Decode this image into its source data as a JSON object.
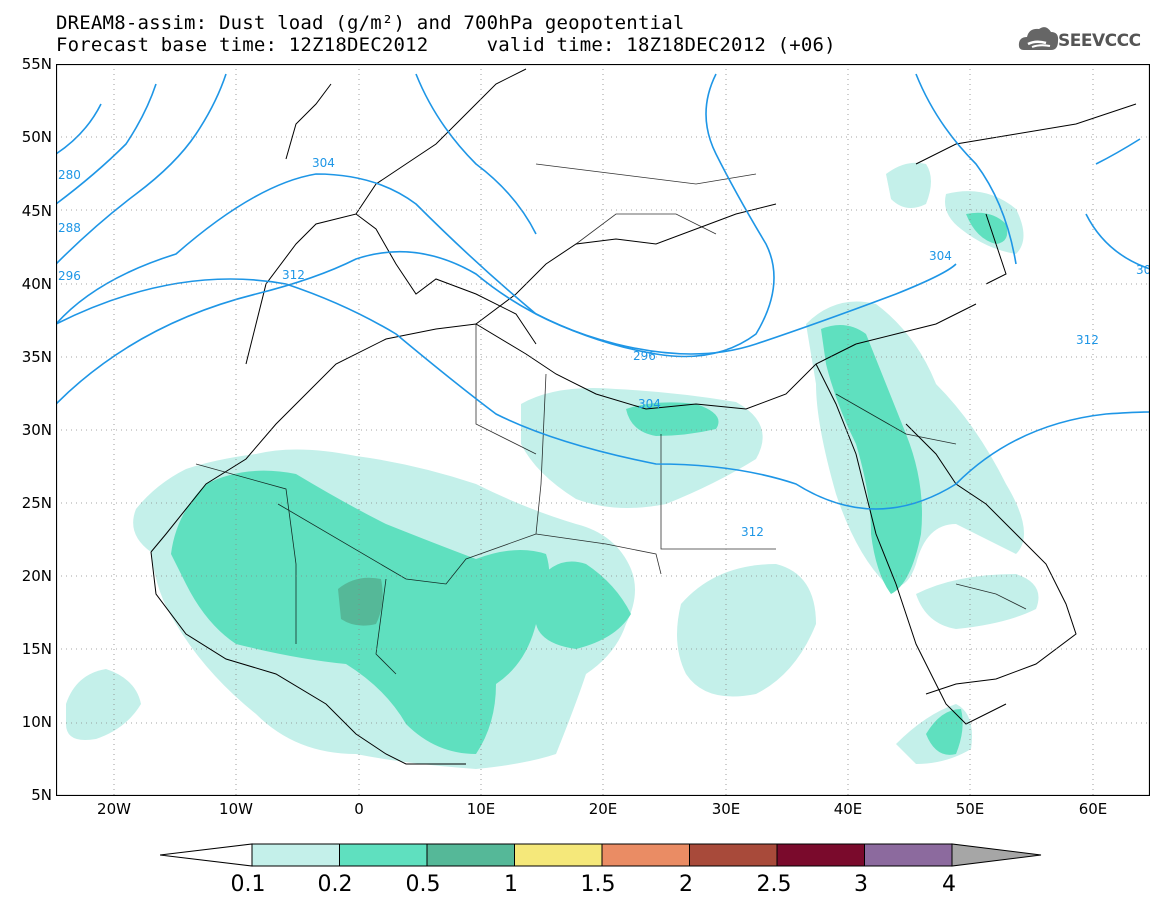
{
  "title": {
    "line1": "DREAM8-assim: Dust load (g/m²) and 700hPa geopotential",
    "line2": "Forecast base time: 12Z18DEC2012     valid time: 18Z18DEC2012 (+06)"
  },
  "logo": {
    "text": "SEEVCCC",
    "icon": "cloud-logo-icon"
  },
  "axes": {
    "lat_labels": [
      "55N",
      "50N",
      "45N",
      "40N",
      "35N",
      "30N",
      "25N",
      "20N",
      "15N",
      "10N",
      "5N"
    ],
    "lon_labels": [
      "20W",
      "10W",
      "0",
      "10E",
      "20E",
      "30E",
      "40E",
      "50E",
      "60E"
    ]
  },
  "contours": {
    "color": "#1e96e6",
    "labels": [
      "280",
      "288",
      "296",
      "304",
      "312",
      "296",
      "304",
      "312",
      "304",
      "312",
      "30"
    ]
  },
  "colorbar": {
    "labels": [
      "0.1",
      "0.2",
      "0.5",
      "1",
      "1.5",
      "2",
      "2.5",
      "3",
      "4"
    ],
    "colors": [
      "#c4f0ea",
      "#5fe0bf",
      "#55b898",
      "#f5e87a",
      "#ea8c64",
      "#a84a3a",
      "#7a0a2c",
      "#8c6a9e",
      "#a6a6a6"
    ]
  }
}
